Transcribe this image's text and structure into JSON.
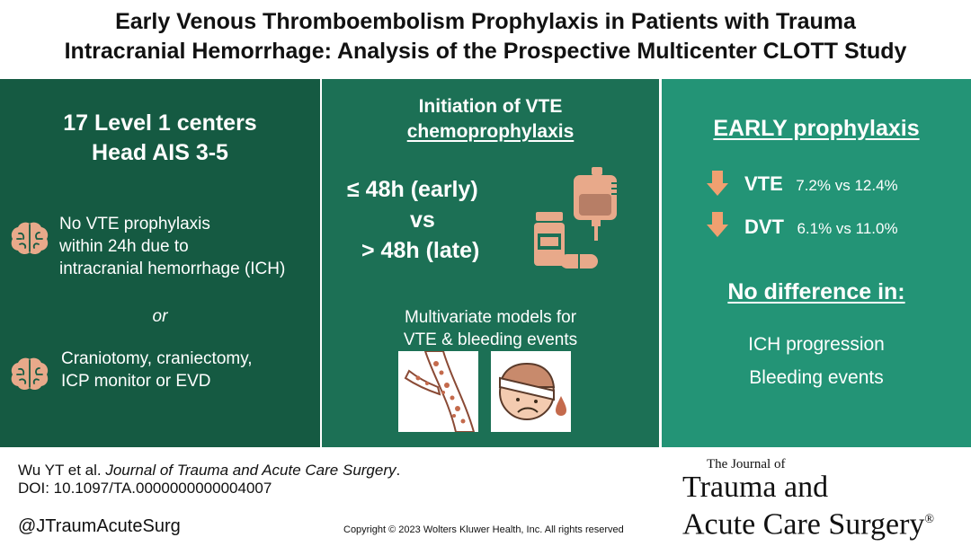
{
  "title": {
    "line1": "Early Venous Thromboembolism Prophylaxis in Patients with Trauma",
    "line2": "Intracranial Hemorrhage: Analysis of the Prospective Multicenter CLOTT Study"
  },
  "panel1": {
    "heading1": "17 Level 1 centers",
    "heading2": "Head AIS 3-5",
    "criterion1": [
      "No VTE prophylaxis",
      "within 24h due to",
      "intracranial hemorrhage (ICH)"
    ],
    "or": "or",
    "criterion2": [
      "Craniotomy, craniectomy,",
      "ICP monitor or EVD"
    ]
  },
  "panel2": {
    "heading1": "Initiation of VTE",
    "heading2": "chemoprophylaxis",
    "early": "≤ 48h (early)",
    "vs": "vs",
    "late": "> 48h (late)",
    "models1": "Multivariate models for",
    "models2": "VTE & bleeding events"
  },
  "panel3": {
    "heading": "EARLY prophylaxis",
    "vte_label": "VTE",
    "vte_value": "7.2% vs 12.4%",
    "dvt_label": "DVT",
    "dvt_value": "6.1% vs 11.0%",
    "nodiff": "No difference in:",
    "item1": "ICH progression",
    "item2": "Bleeding events"
  },
  "footer": {
    "citation_author": "Wu YT et al.",
    "citation_journal": "Journal of Trauma and Acute Care Surgery",
    "citation_end": ".",
    "doi": "DOI: 10.1097/TA.0000000000004007",
    "handle": "@JTraumAcuteSurg",
    "copyright": "Copyright © 2023  Wolters Kluwer Health, Inc. All rights reserved"
  },
  "journal_logo": {
    "line1": "The Journal of",
    "line2": "Trauma and",
    "line3": "Acute Care Surgery",
    "reg": "®"
  },
  "colors": {
    "panel1": "#155a42",
    "panel2": "#1c7055",
    "panel3": "#239476",
    "icon_peach": "#e8a98a"
  }
}
